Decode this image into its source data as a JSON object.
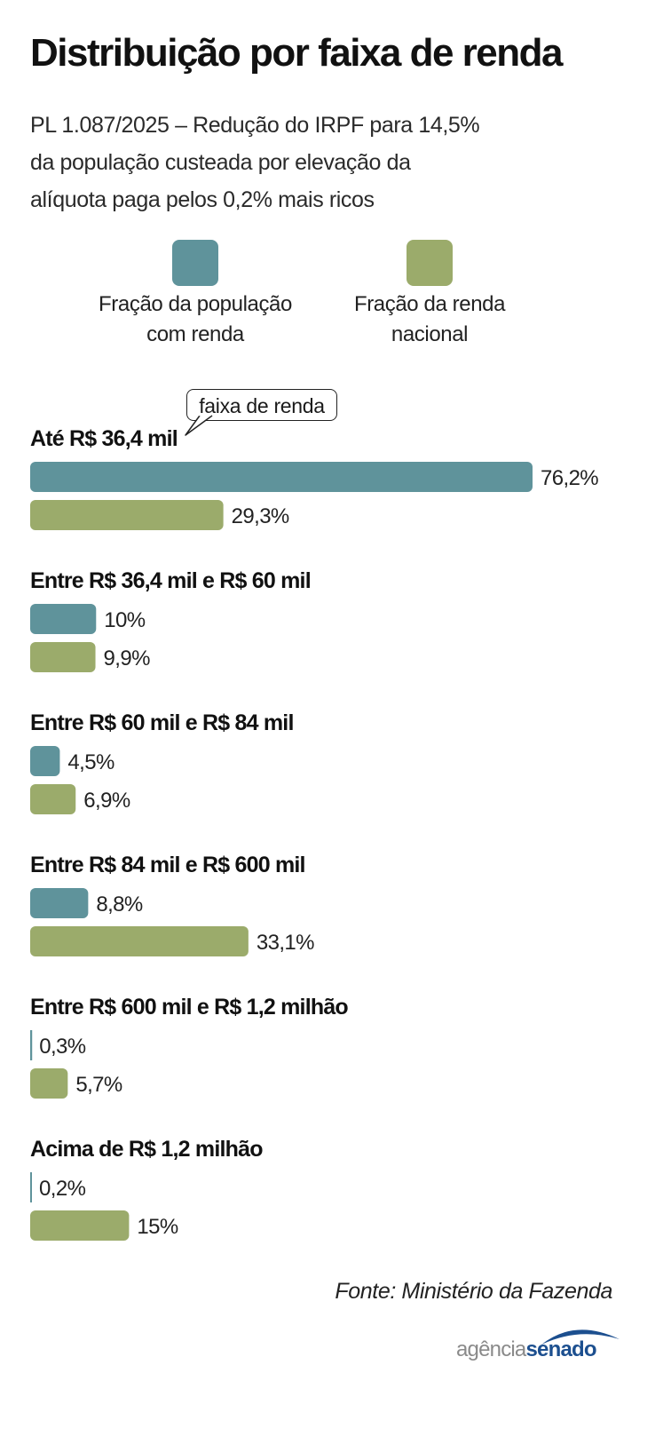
{
  "title": "Distribuição por faixa de renda",
  "subtitle": [
    "PL 1.087/2025 – Redução do IRPF para 14,5%",
    "da população custeada por elevação da",
    "alíquota paga pelos 0,2% mais ricos"
  ],
  "legend": [
    {
      "line1": "Fração da população",
      "line2": "com renda",
      "color": "#5f939b"
    },
    {
      "line1": "Fração da renda",
      "line2": "nacional",
      "color": "#9bab6b"
    }
  ],
  "callout": "faixa de renda",
  "chart_data": {
    "type": "bar",
    "orientation": "horizontal",
    "categories": [
      "Até R$ 36,4 mil",
      "Entre R$ 36,4 mil e R$ 60 mil",
      "Entre R$ 60 mil e R$ 84 mil",
      "Entre R$ 84 mil e R$ 600 mil",
      "Entre R$ 600 mil e R$ 1,2 milhão",
      "Acima de R$ 1,2 milhão"
    ],
    "series": [
      {
        "name": "Fração da população com renda",
        "color": "#5f939b",
        "values": [
          76.2,
          10,
          4.5,
          8.8,
          0.3,
          0.2
        ],
        "labels": [
          "76,2%",
          "10%",
          "4,5%",
          "8,8%",
          "0,3%",
          "0,2%"
        ]
      },
      {
        "name": "Fração da renda nacional",
        "color": "#9bab6b",
        "values": [
          29.3,
          9.9,
          6.9,
          33.1,
          5.7,
          15
        ],
        "labels": [
          "29,3%",
          "9,9%",
          "6,9%",
          "33,1%",
          "5,7%",
          "15%"
        ]
      }
    ],
    "xlim": [
      0,
      76.2
    ],
    "grid": false,
    "legend_position": "top"
  },
  "source": "Fonte: Ministério da Fazenda",
  "logo": {
    "part1": "agência",
    "part2": "senado"
  }
}
